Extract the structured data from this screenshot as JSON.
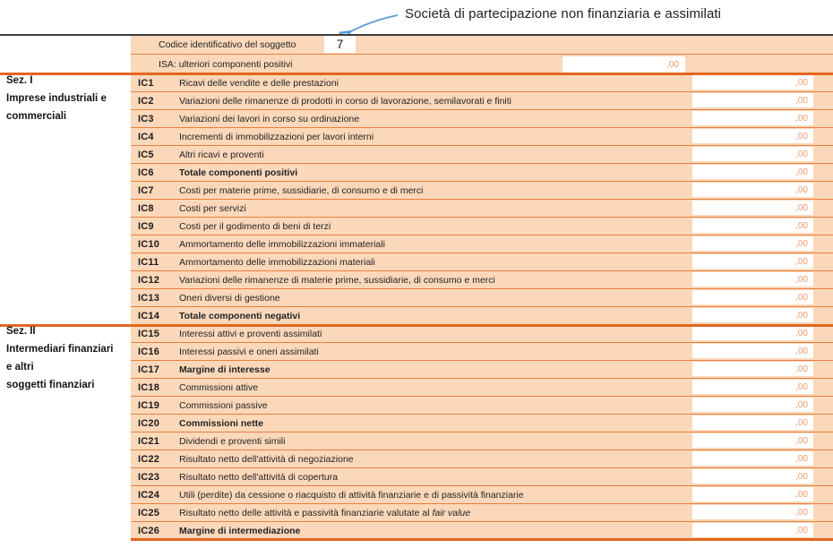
{
  "annotation": {
    "text": "Società di partecipazione non finanziaria e assimilati"
  },
  "colors": {
    "peach": "#fbd8ba",
    "line-thin": "#e87f3e",
    "line-thick": "#e2661f",
    "value-text": "#f09a70",
    "arrow-blue": "#5b9bd5",
    "top-rule": "#3c3c3c"
  },
  "header": {
    "codice_label": "Codice identificativo del soggetto",
    "codice_value": "7",
    "isa_label": "ISA: ulteriori componenti positivi",
    "isa_value": ",00"
  },
  "sections": [
    {
      "title_lines": [
        "Sez. I",
        "Imprese industriali e",
        "commerciali"
      ],
      "rows": [
        {
          "code": "IC1",
          "label": "Ricavi delle vendite e delle prestazioni",
          "bold": false,
          "value": ",00"
        },
        {
          "code": "IC2",
          "label": "Variazioni delle rimanenze di prodotti in corso di lavorazione, semilavorati e finiti",
          "bold": false,
          "value": ",00"
        },
        {
          "code": "IC3",
          "label": "Variazioni dei lavori in corso su ordinazione",
          "bold": false,
          "value": ",00"
        },
        {
          "code": "IC4",
          "label": "Incrementi di immobilizzazioni per lavori interni",
          "bold": false,
          "value": ",00"
        },
        {
          "code": "IC5",
          "label": "Altri ricavi e proventi",
          "bold": false,
          "value": ",00"
        },
        {
          "code": "IC6",
          "label": "Totale componenti positivi",
          "bold": true,
          "value": ",00"
        },
        {
          "code": "IC7",
          "label": "Costi per materie prime, sussidiarie, di consumo e di merci",
          "bold": false,
          "value": ",00"
        },
        {
          "code": "IC8",
          "label": "Costi per servizi",
          "bold": false,
          "value": ",00"
        },
        {
          "code": "IC9",
          "label": "Costi per il godimento di beni di terzi",
          "bold": false,
          "value": ",00"
        },
        {
          "code": "IC10",
          "label": "Ammortamento delle immobilizzazioni immateriali",
          "bold": false,
          "value": ",00"
        },
        {
          "code": "IC11",
          "label": "Ammortamento delle immobilizzazioni materiali",
          "bold": false,
          "value": ",00"
        },
        {
          "code": "IC12",
          "label": "Variazioni delle rimanenze di materie prime, sussidiarie, di consumo e merci",
          "bold": false,
          "value": ",00"
        },
        {
          "code": "IC13",
          "label": "Oneri diversi di gestione",
          "bold": false,
          "value": ",00"
        },
        {
          "code": "IC14",
          "label": "Totale componenti negativi",
          "bold": true,
          "value": ",00"
        }
      ]
    },
    {
      "title_lines": [
        "Sez. II",
        "Intermediari finanziari",
        "e altri",
        "soggetti finanziari"
      ],
      "rows": [
        {
          "code": "IC15",
          "label": "Interessi attivi e proventi assimilati",
          "bold": false,
          "value": ",00"
        },
        {
          "code": "IC16",
          "label": "Interessi passivi e oneri assimilati",
          "bold": false,
          "value": ",00"
        },
        {
          "code": "IC17",
          "label": "Margine di interesse",
          "bold": true,
          "value": ",00"
        },
        {
          "code": "IC18",
          "label": "Commissioni attive",
          "bold": false,
          "value": ",00"
        },
        {
          "code": "IC19",
          "label": "Commissioni passive",
          "bold": false,
          "value": ",00"
        },
        {
          "code": "IC20",
          "label": "Commissioni nette",
          "bold": true,
          "value": ",00"
        },
        {
          "code": "IC21",
          "label": "Dividendi e proventi simili",
          "bold": false,
          "value": ",00"
        },
        {
          "code": "IC22",
          "label": "Risultato netto dell'attività di negoziazione",
          "bold": false,
          "value": ",00"
        },
        {
          "code": "IC23",
          "label": "Risultato netto dell'attività di copertura",
          "bold": false,
          "value": ",00"
        },
        {
          "code": "IC24",
          "label": "Utili (perdite) da cessione o riacquisto di attività finanziarie e di passività finanziarie",
          "bold": false,
          "value": ",00"
        },
        {
          "code": "IC25",
          "label": "Risultato netto delle attività e passività finanziarie valutate al",
          "label_italic": " fair value",
          "bold": false,
          "value": ",00"
        },
        {
          "code": "IC26",
          "label": "Margine di intermediazione",
          "bold": true,
          "value": ",00"
        }
      ]
    }
  ]
}
